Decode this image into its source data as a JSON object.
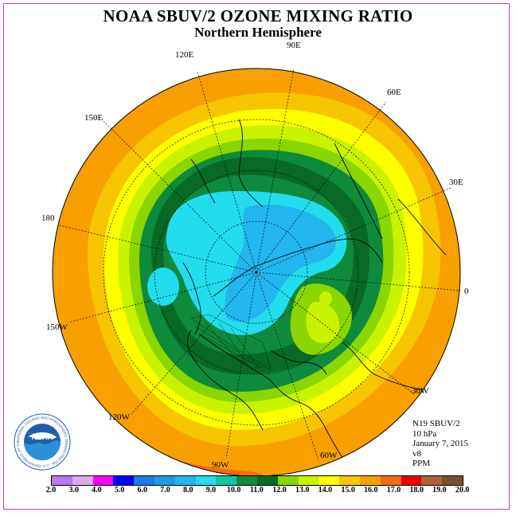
{
  "title": "NOAA SBUV/2 OZONE MIXING RATIO",
  "subtitle": "Northern Hemisphere",
  "longitude_labels": [
    "90E",
    "60E",
    "30E",
    "0",
    "30W",
    "60W",
    "90W",
    "120W",
    "150W",
    "180",
    "150E",
    "120E"
  ],
  "info": {
    "instrument": "N19 SBUV/2",
    "level": "10 hPa",
    "date": "January 7, 2015",
    "version": "v8",
    "units": "PPM"
  },
  "legend": {
    "ticks": [
      "2.0",
      "3.0",
      "4.0",
      "5.0",
      "6.0",
      "7.0",
      "8.0",
      "9.0",
      "10.0",
      "11.0",
      "12.0",
      "13.0",
      "14.0",
      "15.0",
      "16.0",
      "17.0",
      "18.0",
      "19.0",
      "20.0"
    ],
    "colors": [
      "#bb77ee",
      "#ddaaf0",
      "#ff00ff",
      "#0000ff",
      "#1a7be6",
      "#1e9be8",
      "#21b6ee",
      "#22ddee",
      "#11c7a2",
      "#0f8a3c",
      "#086a26",
      "#8ad600",
      "#c9f200",
      "#ffff00",
      "#f7c400",
      "#f8a000",
      "#f76a10",
      "#ee0000",
      "#b2603a",
      "#7a5030"
    ]
  },
  "logo_text": "NOAA",
  "logo_ring_text": "NATIONAL OCEANIC AND ATMOSPHERIC ADMINISTRATION · U.S. DEPARTMENT OF COMMERCE"
}
